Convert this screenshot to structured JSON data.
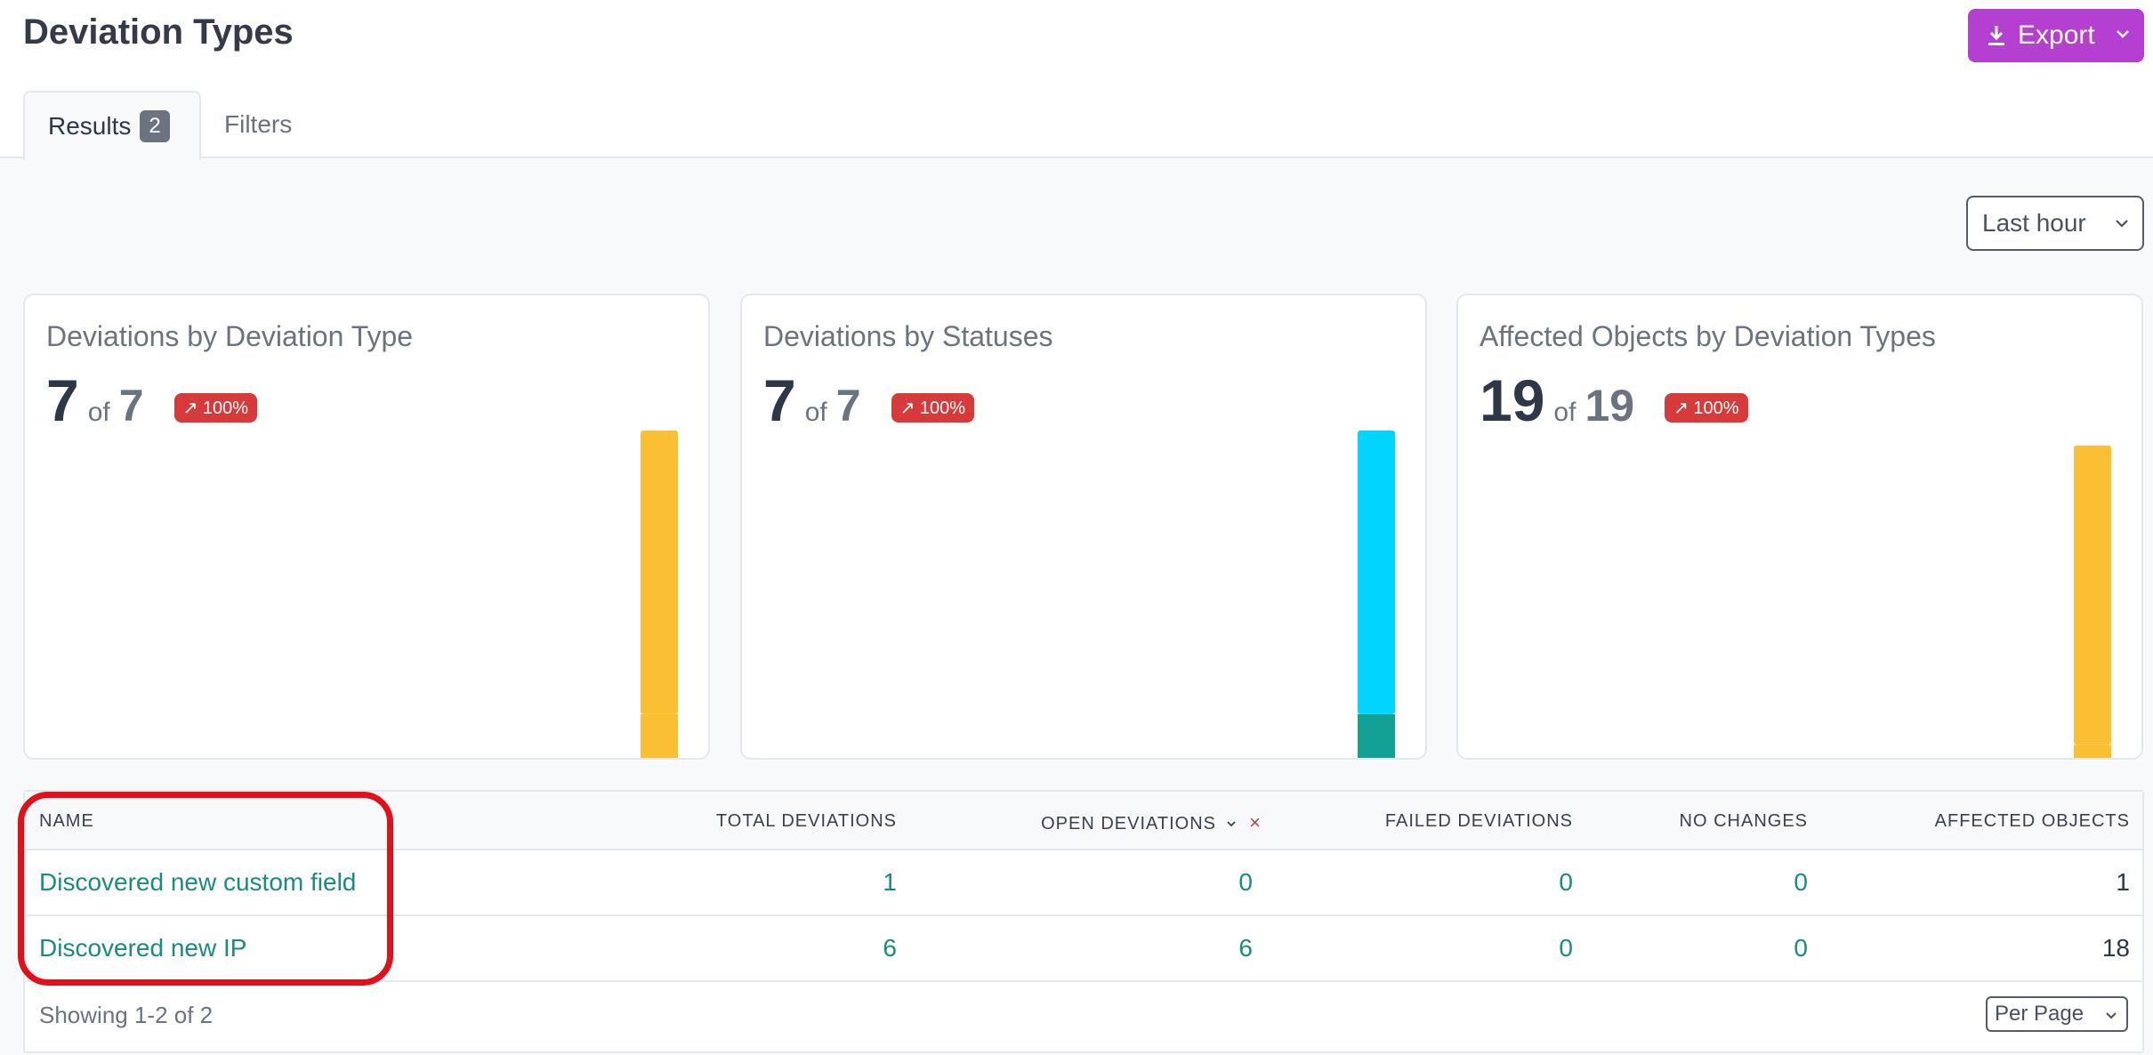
{
  "page": {
    "title": "Deviation Types"
  },
  "export": {
    "label": "Export",
    "icon": "download-icon"
  },
  "tabs": {
    "results_label": "Results",
    "results_count": "2",
    "filters_label": "Filters"
  },
  "time_range": {
    "selected": "Last hour"
  },
  "cards": [
    {
      "title": "Deviations by Deviation Type",
      "value": "7",
      "of": "of",
      "total": "7",
      "trend": "↗ 100%"
    },
    {
      "title": "Deviations by Statuses",
      "value": "7",
      "of": "of",
      "total": "7",
      "trend": "↗ 100%"
    },
    {
      "title": "Affected Objects by Deviation Types",
      "value": "19",
      "of": "of",
      "total": "19",
      "trend": "↗ 100%"
    }
  ],
  "chart_data": [
    {
      "type": "bar",
      "stacked": true,
      "title": "Deviations by Deviation Type",
      "categories": [
        ""
      ],
      "series": [
        {
          "values": [
            1
          ],
          "color": "#fbbf33"
        },
        {
          "values": [
            6
          ],
          "color": "#fbbf33"
        }
      ],
      "ylim": [
        0,
        7
      ]
    },
    {
      "type": "bar",
      "stacked": true,
      "title": "Deviations by Statuses",
      "categories": [
        ""
      ],
      "series": [
        {
          "values": [
            1
          ],
          "color": "#14a195"
        },
        {
          "values": [
            6
          ],
          "color": "#00d4ff"
        }
      ],
      "ylim": [
        0,
        7
      ]
    },
    {
      "type": "bar",
      "stacked": true,
      "title": "Affected Objects by Deviation Types",
      "categories": [
        ""
      ],
      "series": [
        {
          "values": [
            1
          ],
          "color": "#fbbf33"
        },
        {
          "values": [
            18
          ],
          "color": "#fbbf33"
        }
      ],
      "ylim": [
        0,
        19.9
      ]
    }
  ],
  "table": {
    "headers": {
      "name": "NAME",
      "total": "TOTAL DEVIATIONS",
      "open": "OPEN DEVIATIONS",
      "failed": "FAILED DEVIATIONS",
      "no_changes": "NO CHANGES",
      "affected": "AFFECTED OBJECTS"
    },
    "clear_sort": "×",
    "rows": [
      {
        "name": "Discovered new custom field",
        "total": "1",
        "open": "0",
        "failed": "0",
        "no_changes": "0",
        "affected": "1"
      },
      {
        "name": "Discovered new IP",
        "total": "6",
        "open": "6",
        "failed": "0",
        "no_changes": "0",
        "affected": "18"
      }
    ],
    "showing": "Showing 1-2 of 2",
    "per_page": "Per Page"
  },
  "colors": {
    "accent": "#b53fd0",
    "link": "#1b8a80",
    "danger": "#d63a3a",
    "highlight": "#e3101b"
  }
}
